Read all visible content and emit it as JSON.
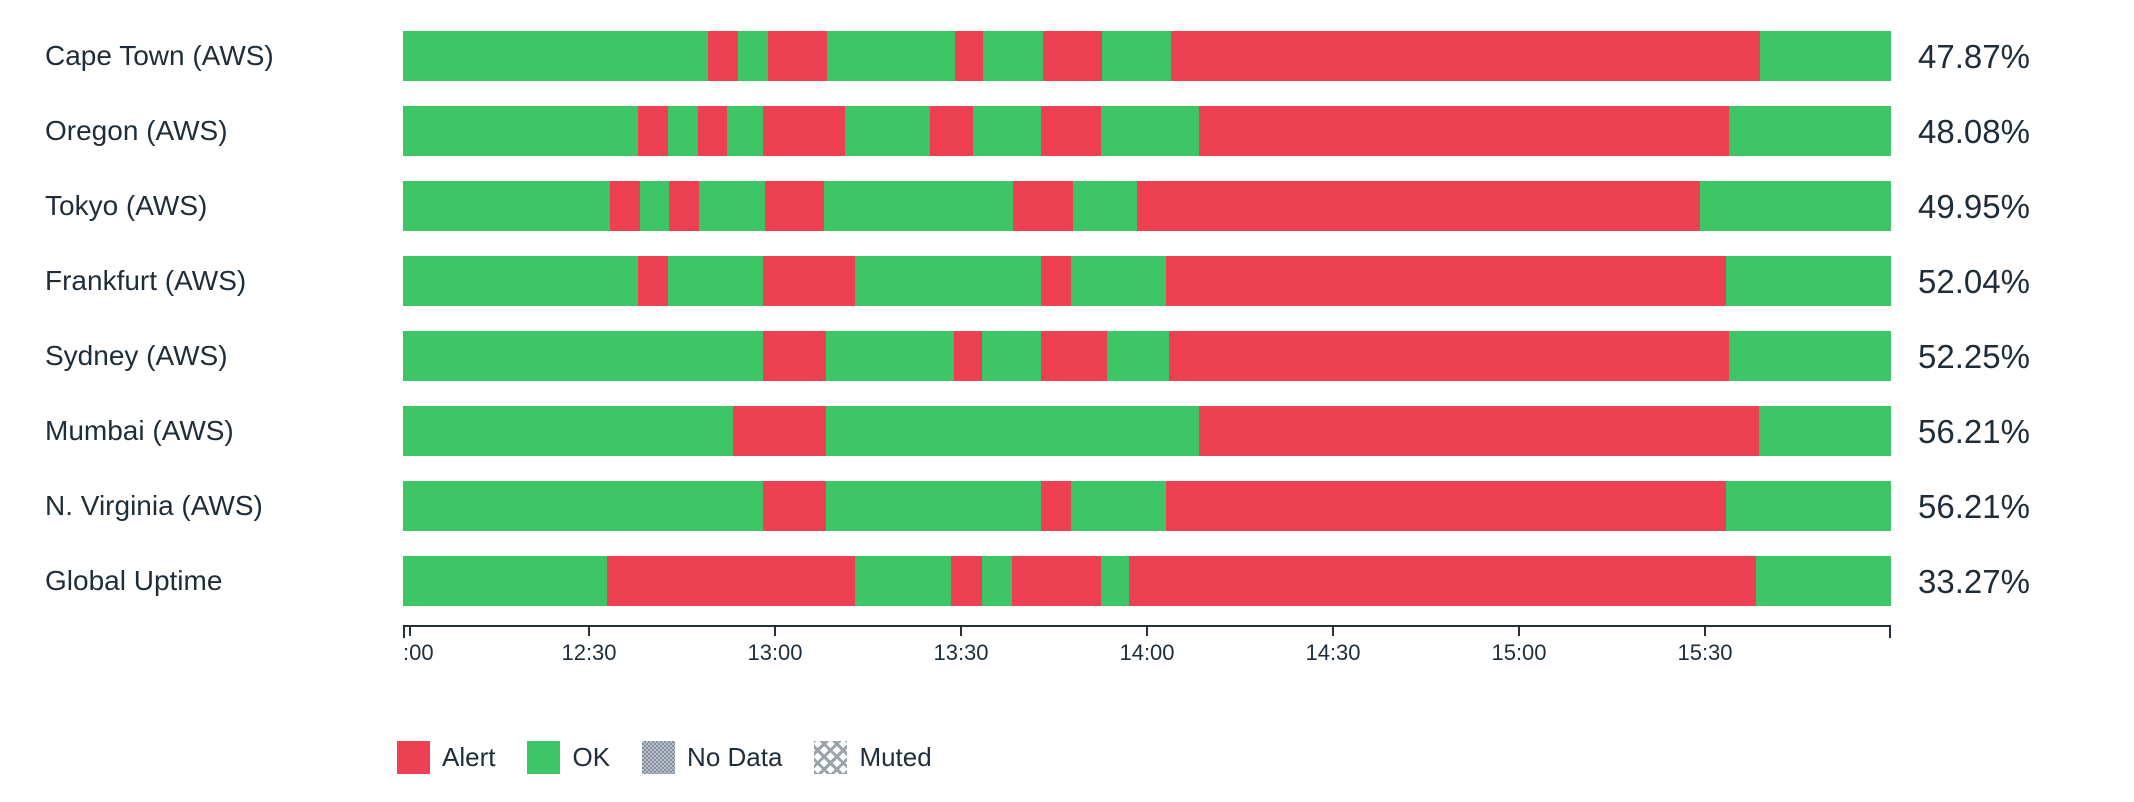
{
  "page": {
    "background": "#ffffff"
  },
  "colors": {
    "alert": "#ED4053",
    "ok": "#3EC566",
    "no_data": "#868FA0",
    "muted": "#9AA2AE",
    "text": "#1F2D3A",
    "axis": "#25303B"
  },
  "legend": {
    "items": [
      {
        "label": "Alert",
        "status": "alert",
        "swatch": "solid"
      },
      {
        "label": "OK",
        "status": "ok",
        "swatch": "solid"
      },
      {
        "label": "No Data",
        "status": "no_data",
        "swatch": "checker"
      },
      {
        "label": "Muted",
        "status": "muted",
        "swatch": "crosshatch"
      }
    ]
  },
  "chart_data": {
    "type": "status-timeline-bar",
    "title": "",
    "x_axis": {
      "ticks": [
        {
          "label": ":00",
          "pos_pct": 0.45,
          "first": true
        },
        {
          "label": "12:30",
          "pos_pct": 12.5
        },
        {
          "label": "13:00",
          "pos_pct": 25
        },
        {
          "label": "13:30",
          "pos_pct": 37.5
        },
        {
          "label": "14:00",
          "pos_pct": 50
        },
        {
          "label": "14:30",
          "pos_pct": 62.5
        },
        {
          "label": "15:00",
          "pos_pct": 75
        },
        {
          "label": "15:30",
          "pos_pct": 87.5
        }
      ],
      "end_caps_pct": [
        0,
        100
      ],
      "implied_range": "12:00 to 16:00, 30-minute ticks"
    },
    "rows": [
      {
        "label": "Cape Town (AWS)",
        "value": "47.87%",
        "segments": [
          {
            "status": "ok",
            "width_pct": 20.5
          },
          {
            "status": "alert",
            "width_pct": 2.0
          },
          {
            "status": "ok",
            "width_pct": 2.0
          },
          {
            "status": "alert",
            "width_pct": 4.0
          },
          {
            "status": "ok",
            "width_pct": 8.6
          },
          {
            "status": "alert",
            "width_pct": 1.9
          },
          {
            "status": "ok",
            "width_pct": 4.0
          },
          {
            "status": "alert",
            "width_pct": 4.0
          },
          {
            "status": "ok",
            "width_pct": 4.6
          },
          {
            "status": "alert",
            "width_pct": 39.6
          },
          {
            "status": "ok",
            "width_pct": 8.8
          }
        ]
      },
      {
        "label": "Oregon (AWS)",
        "value": "48.08%",
        "segments": [
          {
            "status": "ok",
            "width_pct": 15.8
          },
          {
            "status": "alert",
            "width_pct": 2.0
          },
          {
            "status": "ok",
            "width_pct": 2.0
          },
          {
            "status": "alert",
            "width_pct": 2.0
          },
          {
            "status": "ok",
            "width_pct": 2.4
          },
          {
            "status": "alert",
            "width_pct": 5.5
          },
          {
            "status": "ok",
            "width_pct": 5.7
          },
          {
            "status": "alert",
            "width_pct": 2.9
          },
          {
            "status": "ok",
            "width_pct": 4.6
          },
          {
            "status": "alert",
            "width_pct": 4.0
          },
          {
            "status": "ok",
            "width_pct": 6.6
          },
          {
            "status": "alert",
            "width_pct": 35.6
          },
          {
            "status": "ok",
            "width_pct": 10.9
          }
        ]
      },
      {
        "label": "Tokyo (AWS)",
        "value": "49.95%",
        "segments": [
          {
            "status": "ok",
            "width_pct": 13.9
          },
          {
            "status": "alert",
            "width_pct": 2.0
          },
          {
            "status": "ok",
            "width_pct": 2.0
          },
          {
            "status": "alert",
            "width_pct": 2.0
          },
          {
            "status": "ok",
            "width_pct": 4.4
          },
          {
            "status": "alert",
            "width_pct": 4.0
          },
          {
            "status": "ok",
            "width_pct": 12.7
          },
          {
            "status": "alert",
            "width_pct": 4.0
          },
          {
            "status": "ok",
            "width_pct": 4.3
          },
          {
            "status": "alert",
            "width_pct": 37.9
          },
          {
            "status": "ok",
            "width_pct": 12.8
          }
        ]
      },
      {
        "label": "Frankfurt (AWS)",
        "value": "52.04%",
        "segments": [
          {
            "status": "ok",
            "width_pct": 15.8
          },
          {
            "status": "alert",
            "width_pct": 2.0
          },
          {
            "status": "ok",
            "width_pct": 6.4
          },
          {
            "status": "alert",
            "width_pct": 6.2
          },
          {
            "status": "ok",
            "width_pct": 12.5
          },
          {
            "status": "alert",
            "width_pct": 2.0
          },
          {
            "status": "ok",
            "width_pct": 6.4
          },
          {
            "status": "alert",
            "width_pct": 37.6
          },
          {
            "status": "ok",
            "width_pct": 11.1
          }
        ]
      },
      {
        "label": "Sydney (AWS)",
        "value": "52.25%",
        "segments": [
          {
            "status": "ok",
            "width_pct": 24.2
          },
          {
            "status": "alert",
            "width_pct": 4.2
          },
          {
            "status": "ok",
            "width_pct": 8.6
          },
          {
            "status": "alert",
            "width_pct": 1.9
          },
          {
            "status": "ok",
            "width_pct": 4.0
          },
          {
            "status": "alert",
            "width_pct": 4.4
          },
          {
            "status": "ok",
            "width_pct": 4.2
          },
          {
            "status": "alert",
            "width_pct": 37.6
          },
          {
            "status": "ok",
            "width_pct": 10.9
          }
        ]
      },
      {
        "label": "Mumbai (AWS)",
        "value": "56.21%",
        "segments": [
          {
            "status": "ok",
            "width_pct": 22.2
          },
          {
            "status": "alert",
            "width_pct": 6.2
          },
          {
            "status": "ok",
            "width_pct": 25.1
          },
          {
            "status": "alert",
            "width_pct": 37.6
          },
          {
            "status": "ok",
            "width_pct": 8.9
          }
        ]
      },
      {
        "label": "N. Virginia (AWS)",
        "value": "56.21%",
        "segments": [
          {
            "status": "ok",
            "width_pct": 24.2
          },
          {
            "status": "alert",
            "width_pct": 4.2
          },
          {
            "status": "ok",
            "width_pct": 14.5
          },
          {
            "status": "alert",
            "width_pct": 2.0
          },
          {
            "status": "ok",
            "width_pct": 6.4
          },
          {
            "status": "alert",
            "width_pct": 37.6
          },
          {
            "status": "ok",
            "width_pct": 11.1
          }
        ]
      },
      {
        "label": "Global Uptime",
        "value": "33.27%",
        "segments": [
          {
            "status": "ok",
            "width_pct": 13.7
          },
          {
            "status": "alert",
            "width_pct": 16.7
          },
          {
            "status": "ok",
            "width_pct": 6.4
          },
          {
            "status": "alert",
            "width_pct": 2.1
          },
          {
            "status": "ok",
            "width_pct": 2.0
          },
          {
            "status": "alert",
            "width_pct": 6.0
          },
          {
            "status": "ok",
            "width_pct": 1.9
          },
          {
            "status": "alert",
            "width_pct": 42.1
          },
          {
            "status": "ok",
            "width_pct": 9.1
          }
        ]
      }
    ]
  }
}
